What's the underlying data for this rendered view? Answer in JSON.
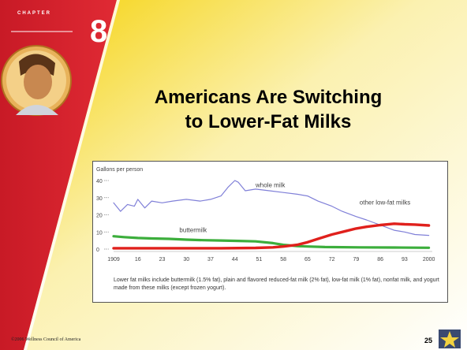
{
  "slide": {
    "chapter_label": "CHAPTER",
    "chapter_number": "8",
    "title_line1": "Americans Are Switching",
    "title_line2": "to Lower-Fat Milks",
    "caption": "Lower fat milks include buttermilk (1.5% fat), plain and flavored reduced-fat milk (2% fat), low-fat milk (1% fat), nonfat milk, and yogurt made from these milks (except frozen yogurt).",
    "copyright": "©2006 Wellness Council of America",
    "page_number": "25"
  },
  "colors": {
    "red_band": "#d8202e",
    "gold": "#f0b400",
    "whole_milk": "#8080d8",
    "other_low_fat": "#e0201c",
    "buttermilk": "#3cae3c"
  },
  "chart_data": {
    "type": "line",
    "ylabel": "Gallons per person",
    "ylim": [
      0,
      40
    ],
    "yticks": [
      0,
      10,
      20,
      30,
      40
    ],
    "xlim": [
      1909,
      2001
    ],
    "xtick_labels": [
      "1909",
      "16",
      "23",
      "30",
      "37",
      "44",
      "51",
      "58",
      "65",
      "72",
      "79",
      "86",
      "93",
      "2000"
    ],
    "xtick_years": [
      1909,
      1916,
      1923,
      1930,
      1937,
      1944,
      1951,
      1958,
      1965,
      1972,
      1979,
      1986,
      1993,
      2000
    ],
    "grid": false,
    "series": [
      {
        "name": "whole milk",
        "x": [
          1909,
          1911,
          1913,
          1915,
          1916,
          1918,
          1920,
          1923,
          1926,
          1930,
          1934,
          1937,
          1940,
          1942,
          1944,
          1945,
          1947,
          1950,
          1954,
          1958,
          1962,
          1965,
          1968,
          1972,
          1975,
          1979,
          1982,
          1986,
          1990,
          1993,
          1996,
          2000
        ],
        "y": [
          27,
          22,
          26,
          25,
          29,
          24,
          28,
          27,
          28,
          29,
          28,
          29,
          31,
          36,
          40,
          39,
          34,
          35,
          34,
          33,
          32,
          31,
          28,
          25,
          22,
          19,
          17,
          14,
          11,
          10,
          8.5,
          8
        ]
      },
      {
        "name": "other low-fat milks",
        "x": [
          1909,
          1920,
          1930,
          1940,
          1950,
          1955,
          1958,
          1962,
          1965,
          1968,
          1972,
          1976,
          1979,
          1982,
          1986,
          1990,
          1993,
          1996,
          2000
        ],
        "y": [
          0.5,
          0.5,
          0.5,
          0.5,
          0.7,
          1,
          1.5,
          2.5,
          4,
          6,
          8.5,
          10.5,
          12,
          13,
          14,
          14.8,
          14.5,
          14.3,
          13.8
        ]
      },
      {
        "name": "buttermilk",
        "x": [
          1909,
          1912,
          1916,
          1920,
          1925,
          1930,
          1935,
          1940,
          1945,
          1950,
          1955,
          1958,
          1962,
          1965,
          1970,
          1980,
          1990,
          2000
        ],
        "y": [
          7.5,
          7,
          6.5,
          6.2,
          6,
          5.5,
          5.2,
          5,
          4.8,
          4.5,
          3.5,
          2.5,
          1.8,
          1.5,
          1.2,
          1,
          0.9,
          0.8
        ]
      }
    ]
  }
}
